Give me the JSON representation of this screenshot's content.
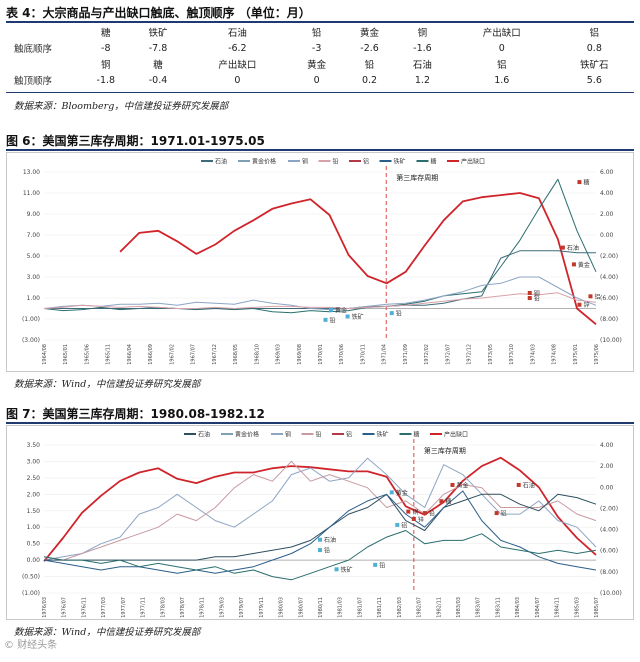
{
  "table4": {
    "title": "表 4：大宗商品与产出缺口触底、触顶顺序 （单位：月）",
    "rows": [
      {
        "label": "",
        "cells": [
          "糖",
          "铁矿",
          "石油",
          "铅",
          "黄金",
          "铜",
          "产出缺口",
          "铝"
        ]
      },
      {
        "label": "触底顺序",
        "cells": [
          "-8",
          "-7.8",
          "-6.2",
          "-3",
          "-2.6",
          "-1.6",
          "0",
          "0.8"
        ]
      },
      {
        "label": "",
        "cells": [
          "铜",
          "糖",
          "产出缺口",
          "黄金",
          "铅",
          "石油",
          "铝",
          "铁矿石"
        ]
      },
      {
        "label": "触顶顺序",
        "cells": [
          "-1.8",
          "-0.4",
          "0",
          "0",
          "0.2",
          "1.2",
          "1.6",
          "5.6"
        ]
      }
    ],
    "source": "数据来源：Bloomberg，中信建投证券研究发展部"
  },
  "fig6": {
    "title": "图 6：美国第三库存周期：1971.01-1975.05",
    "source": "数据来源：Wind，中信建投证券研究发展部",
    "chart_data": {
      "type": "line",
      "legend": [
        "石油",
        "黄金价格",
        "铜",
        "铅",
        "铝",
        "铁矿",
        "糖",
        "产出缺口"
      ],
      "legend_colors": [
        "#3d6b7a",
        "#7ea0b4",
        "#8da5c4",
        "#d8a0a8",
        "#b23a48",
        "#2b5e8a",
        "#2a6e6e",
        "#d0242b"
      ],
      "cycle_label": "第三库存周期",
      "ylim_left": [
        -3.0,
        13.0
      ],
      "ylim_right": [
        -10.0,
        6.0
      ],
      "left_ticks": [
        "13.00",
        "11.00",
        "9.00",
        "7.00",
        "5.00",
        "3.00",
        "1.00",
        "(1.00)",
        "(3.00)"
      ],
      "right_ticks": [
        "6.00",
        "4.00",
        "2.00",
        "0.00",
        "(2.00)",
        "(4.00)",
        "(6.00)",
        "(8.00)",
        "(10.00)"
      ],
      "x_ticks": [
        "1964/08",
        "1965/01",
        "1965/06",
        "1965/11",
        "1966/04",
        "1966/09",
        "1967/02",
        "1967/07",
        "1967/12",
        "1968/05",
        "1968/10",
        "1969/03",
        "1969/08",
        "1970/01",
        "1970/06",
        "1970/11",
        "1971/04",
        "1971/09",
        "1972/02",
        "1972/07",
        "1972/12",
        "1973/05",
        "1973/10",
        "1974/03",
        "1974/08",
        "1975/01",
        "1975/06"
      ],
      "annotations": [
        "糖",
        "石油",
        "黄金",
        "铜",
        "铅",
        "铝",
        "锌",
        "黄金",
        "铁矿",
        "铅",
        "铅"
      ],
      "series": [
        {
          "name": "产出缺口",
          "axis": "right",
          "values": [
            null,
            null,
            null,
            null,
            -1.6,
            0.2,
            0.4,
            -0.6,
            -1.8,
            -0.9,
            0.4,
            1.4,
            2.5,
            3.0,
            3.4,
            1.9,
            -1.9,
            -3.9,
            -4.6,
            -3.5,
            -1.0,
            1.4,
            3.2,
            3.6,
            3.8,
            4.0,
            3.5,
            -0.4,
            -7.0,
            -8.5
          ]
        },
        {
          "name": "糖",
          "axis": "left",
          "values": [
            0.0,
            -0.2,
            -0.1,
            0.1,
            -0.1,
            0.0,
            0.1,
            0.0,
            -0.1,
            0.0,
            -0.1,
            0.0,
            -0.3,
            -0.4,
            -0.2,
            -0.3,
            -0.2,
            0.1,
            0.2,
            0.4,
            0.7,
            1.2,
            1.4,
            1.6,
            4.0,
            6.5,
            9.5,
            12.3,
            7.4,
            3.5
          ]
        },
        {
          "name": "石油",
          "axis": "left",
          "values": [
            0.0,
            0.0,
            0.0,
            0.0,
            0.0,
            0.0,
            0.0,
            0.0,
            0.0,
            0.0,
            0.0,
            0.0,
            0.0,
            0.0,
            0.0,
            0.0,
            0.0,
            0.2,
            0.2,
            0.3,
            0.3,
            0.5,
            0.9,
            1.2,
            4.8,
            5.5,
            5.5,
            5.5,
            5.3,
            5.3
          ]
        },
        {
          "name": "铜",
          "axis": "left",
          "values": [
            0.0,
            0.2,
            0.3,
            0.2,
            0.4,
            0.4,
            0.5,
            0.3,
            0.6,
            0.5,
            0.4,
            0.8,
            0.5,
            0.3,
            0.0,
            -0.1,
            0.0,
            0.2,
            0.4,
            0.5,
            0.8,
            1.2,
            1.6,
            2.2,
            2.4,
            3.0,
            3.0,
            2.0,
            1.0,
            0.3
          ]
        },
        {
          "name": "铅",
          "axis": "left",
          "values": [
            0.0,
            0.1,
            0.3,
            0.2,
            0.1,
            0.2,
            0.1,
            0.0,
            0.0,
            0.1,
            0.0,
            0.1,
            0.2,
            0.2,
            0.1,
            0.1,
            0.0,
            0.1,
            0.2,
            0.3,
            0.5,
            0.7,
            0.9,
            1.0,
            1.2,
            1.4,
            1.3,
            1.5,
            0.8,
            0.6
          ]
        }
      ]
    }
  },
  "fig7": {
    "title": "图 7：美国第三库存周期：1980.08-1982.12",
    "source": "数据来源：Wind，中信建投证券研究发展部",
    "chart_data": {
      "type": "line",
      "legend": [
        "石油",
        "黄金价格",
        "铜",
        "铅",
        "铝",
        "铁矿",
        "糖",
        "产出缺口"
      ],
      "legend_colors": [
        "#2e4f5e",
        "#7ea0b4",
        "#8da5c4",
        "#c89aa2",
        "#b23a48",
        "#2b5e8a",
        "#2a6e6e",
        "#d0242b"
      ],
      "cycle_label": "第三库存周期",
      "ylim_left": [
        -1.0,
        3.5
      ],
      "ylim_right": [
        -10.0,
        4.0
      ],
      "left_ticks": [
        "3.50",
        "3.00",
        "2.50",
        "2.00",
        "1.50",
        "1.00",
        "0.50",
        "0.00",
        "(0.50)",
        "(1.00)"
      ],
      "right_ticks": [
        "4.00",
        "2.00",
        "0.00",
        "(2.00)",
        "(4.00)",
        "(6.00)",
        "(8.00)",
        "(10.00)"
      ],
      "x_ticks": [
        "1976/03",
        "1976/07",
        "1976/11",
        "1977/03",
        "1977/07",
        "1977/11",
        "1978/03",
        "1978/07",
        "1978/11",
        "1979/03",
        "1979/07",
        "1979/11",
        "1980/03",
        "1980/07",
        "1980/11",
        "1981/03",
        "1981/07",
        "1981/11",
        "1982/03",
        "1982/07",
        "1982/11",
        "1983/03",
        "1983/07",
        "1983/11",
        "1984/03",
        "1984/07",
        "1984/11",
        "1985/03",
        "1985/07"
      ],
      "annotations": [
        "糖",
        "石油",
        "黄金",
        "铜",
        "铅",
        "铝",
        "锌",
        "黄金",
        "石油",
        "铝",
        "铅",
        "铅",
        "铁矿"
      ],
      "series": [
        {
          "name": "产出缺口",
          "axis": "right",
          "values": [
            -7.0,
            -4.8,
            -2.4,
            -0.8,
            0.6,
            1.4,
            1.8,
            0.8,
            0.4,
            1.0,
            1.4,
            1.4,
            1.8,
            2.0,
            1.9,
            1.7,
            1.5,
            1.5,
            1.0,
            -1.8,
            -2.6,
            -1.4,
            0.6,
            2.0,
            2.8,
            1.6,
            0.0,
            -2.8,
            -4.8,
            -6.4
          ]
        },
        {
          "name": "铜",
          "axis": "left",
          "values": [
            0.0,
            0.1,
            0.2,
            0.5,
            0.7,
            1.4,
            1.6,
            2.0,
            1.6,
            1.2,
            1.0,
            1.4,
            1.8,
            2.6,
            2.8,
            2.4,
            2.5,
            3.1,
            2.6,
            2.0,
            1.6,
            2.9,
            2.6,
            2.0,
            1.4,
            1.4,
            1.8,
            1.2,
            1.0,
            0.4
          ]
        },
        {
          "name": "铅",
          "axis": "left",
          "values": [
            0.1,
            0.0,
            0.2,
            0.4,
            0.6,
            0.8,
            1.0,
            1.4,
            1.2,
            1.6,
            2.2,
            2.6,
            2.4,
            3.0,
            2.4,
            2.6,
            2.4,
            2.2,
            1.6,
            1.8,
            1.4,
            2.0,
            2.3,
            2.2,
            1.6,
            1.6,
            1.6,
            1.8,
            1.4,
            1.2
          ]
        },
        {
          "name": "石油",
          "axis": "left",
          "values": [
            0.0,
            0.0,
            0.0,
            0.0,
            0.0,
            0.0,
            0.0,
            0.0,
            0.0,
            0.1,
            0.1,
            0.2,
            0.3,
            0.4,
            0.6,
            1.0,
            1.4,
            1.6,
            2.0,
            1.2,
            0.9,
            1.6,
            1.8,
            2.0,
            2.0,
            1.7,
            1.5,
            2.0,
            1.9,
            1.7
          ]
        },
        {
          "name": "铁矿",
          "axis": "left",
          "values": [
            0.0,
            -0.1,
            -0.2,
            -0.3,
            -0.2,
            -0.2,
            -0.3,
            -0.4,
            -0.3,
            -0.4,
            -0.3,
            -0.2,
            0.0,
            0.2,
            0.5,
            1.0,
            1.5,
            1.8,
            2.0,
            1.4,
            1.0,
            1.6,
            2.1,
            1.2,
            0.6,
            0.4,
            0.1,
            -0.1,
            -0.2,
            -0.3
          ]
        },
        {
          "name": "糖",
          "axis": "left",
          "values": [
            0.1,
            0.0,
            0.0,
            -0.1,
            0.0,
            -0.2,
            -0.1,
            -0.2,
            -0.3,
            -0.2,
            -0.4,
            -0.3,
            -0.5,
            -0.6,
            -0.4,
            -0.2,
            0.0,
            0.4,
            0.7,
            0.9,
            0.5,
            0.6,
            0.6,
            0.8,
            0.4,
            0.3,
            0.2,
            0.3,
            0.2,
            0.3
          ]
        }
      ]
    }
  },
  "watermark": "© 财经头条"
}
